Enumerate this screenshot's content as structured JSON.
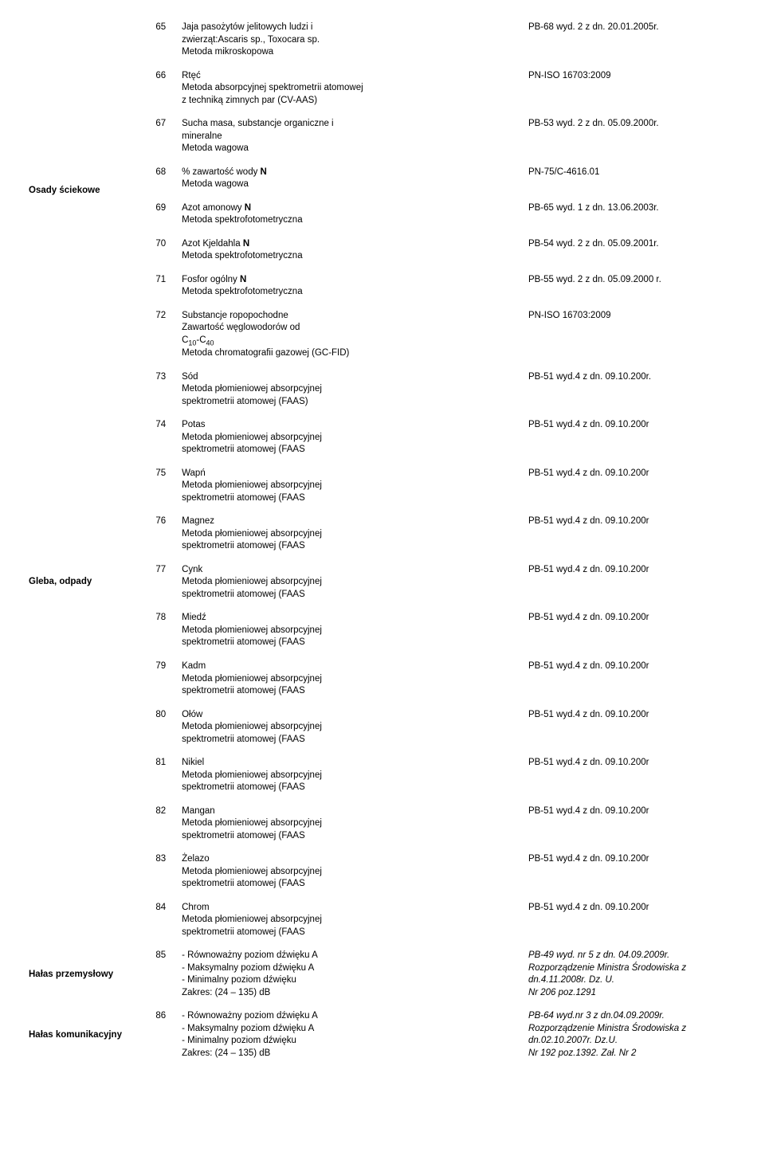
{
  "categories": [
    {
      "label": "Osady ściekowe",
      "startRow": 65,
      "span": 8
    },
    {
      "label": "Gleba, odpady",
      "startRow": 77,
      "span": 1
    },
    {
      "label": "Hałas przemysłowy",
      "startRow": 85,
      "span": 1
    },
    {
      "label": "Hałas komunikacyjny",
      "startRow": 86,
      "span": 1
    }
  ],
  "rows": [
    {
      "n": 65,
      "desc": [
        {
          "t": "Jaja pasożytów jelitowych ludzi i"
        },
        {
          "t": "zwierząt:Ascaris sp., Toxocara sp."
        },
        {
          "t": "Metoda mikroskopowa"
        }
      ],
      "ref": [
        {
          "t": "PB-68 wyd. 2 z dn. 20.01.2005r."
        }
      ]
    },
    {
      "n": 66,
      "desc": [
        {
          "t": "Rtęć"
        },
        {
          "t": "Metoda absorpcyjnej spektrometrii atomowej"
        },
        {
          "t": "z techniką zimnych par (CV-AAS)"
        }
      ],
      "ref": [
        {
          "t": "PN-ISO 16703:2009"
        }
      ]
    },
    {
      "n": 67,
      "desc": [
        {
          "t": "Sucha masa, substancje organiczne i"
        },
        {
          "t": "mineralne"
        },
        {
          "t": "Metoda wagowa"
        }
      ],
      "ref": [
        {
          "t": "PB-53 wyd. 2 z dn. 05.09.2000r."
        }
      ]
    },
    {
      "n": 68,
      "desc": [
        {
          "seq": [
            {
              "t": "% zawartość wody "
            },
            {
              "t": "N",
              "b": 1
            }
          ]
        },
        {
          "t": "Metoda wagowa"
        }
      ],
      "ref": [
        {
          "t": "PN-75/C-4616.01"
        }
      ]
    },
    {
      "n": 69,
      "desc": [
        {
          "seq": [
            {
              "t": "Azot amonowy "
            },
            {
              "t": "N",
              "b": 1
            }
          ]
        },
        {
          "t": "Metoda spektrofotometryczna"
        }
      ],
      "ref": [
        {
          "t": "PB-65 wyd. 1 z dn. 13.06.2003r."
        }
      ]
    },
    {
      "n": 70,
      "desc": [
        {
          "seq": [
            {
              "t": "Azot Kjeldahla "
            },
            {
              "t": "N",
              "b": 1
            }
          ]
        },
        {
          "t": "Metoda spektrofotometryczna"
        }
      ],
      "ref": [
        {
          "t": "PB-54 wyd. 2 z dn. 05.09.2001r."
        }
      ]
    },
    {
      "n": 71,
      "desc": [
        {
          "seq": [
            {
              "t": "Fosfor ogólny "
            },
            {
              "t": "N",
              "b": 1
            }
          ]
        },
        {
          "t": "Metoda spektrofotometryczna"
        }
      ],
      "ref": [
        {
          "t": "PB-55 wyd. 2 z dn. 05.09.2000 r."
        }
      ]
    },
    {
      "n": 72,
      "desc": [
        {
          "t": "Substancje ropopochodne"
        },
        {
          "t": "Zawartość węglowodorów od"
        },
        {
          "seq": [
            {
              "t": "C"
            },
            {
              "t": "10",
              "sub": 1
            },
            {
              "t": "-C"
            },
            {
              "t": "40",
              "sub": 1
            }
          ]
        },
        {
          "t": "Metoda chromatografii gazowej (GC-FID)"
        }
      ],
      "ref": [
        {
          "t": "PN-ISO 16703:2009"
        }
      ]
    },
    {
      "n": 73,
      "desc": [
        {
          "t": "Sód"
        },
        {
          "t": "Metoda płomieniowej absorpcyjnej"
        },
        {
          "t": "spektrometrii atomowej (FAAS)"
        }
      ],
      "ref": [
        {
          "t": "PB-51 wyd.4 z dn. 09.10.200r."
        }
      ]
    },
    {
      "n": 74,
      "desc": [
        {
          "t": "Potas"
        },
        {
          "t": "Metoda płomieniowej absorpcyjnej"
        },
        {
          "t": "spektrometrii atomowej (FAAS"
        }
      ],
      "ref": [
        {
          "t": "PB-51 wyd.4 z dn. 09.10.200r"
        }
      ]
    },
    {
      "n": 75,
      "desc": [
        {
          "t": "Wapń"
        },
        {
          "t": "Metoda płomieniowej absorpcyjnej"
        },
        {
          "t": "spektrometrii atomowej (FAAS"
        }
      ],
      "ref": [
        {
          "t": "PB-51 wyd.4 z dn. 09.10.200r"
        }
      ]
    },
    {
      "n": 76,
      "desc": [
        {
          "t": "Magnez"
        },
        {
          "t": "Metoda płomieniowej absorpcyjnej"
        },
        {
          "t": "spektrometrii atomowej (FAAS"
        }
      ],
      "ref": [
        {
          "t": "PB-51 wyd.4 z dn. 09.10.200r"
        }
      ]
    },
    {
      "n": 77,
      "desc": [
        {
          "t": "Cynk"
        },
        {
          "t": "Metoda płomieniowej absorpcyjnej"
        },
        {
          "t": "spektrometrii atomowej (FAAS"
        }
      ],
      "ref": [
        {
          "t": "PB-51 wyd.4 z dn. 09.10.200r"
        }
      ]
    },
    {
      "n": 78,
      "desc": [
        {
          "t": "Miedź"
        },
        {
          "t": "Metoda płomieniowej absorpcyjnej"
        },
        {
          "t": "spektrometrii atomowej (FAAS"
        }
      ],
      "ref": [
        {
          "t": "PB-51 wyd.4 z dn. 09.10.200r"
        }
      ]
    },
    {
      "n": 79,
      "desc": [
        {
          "t": "Kadm"
        },
        {
          "t": "Metoda płomieniowej absorpcyjnej"
        },
        {
          "t": "spektrometrii atomowej (FAAS"
        }
      ],
      "ref": [
        {
          "t": "PB-51 wyd.4 z dn. 09.10.200r"
        }
      ]
    },
    {
      "n": 80,
      "desc": [
        {
          "t": "Ołów"
        },
        {
          "t": "Metoda płomieniowej absorpcyjnej"
        },
        {
          "t": "spektrometrii atomowej (FAAS"
        }
      ],
      "ref": [
        {
          "t": "PB-51 wyd.4 z dn. 09.10.200r"
        }
      ]
    },
    {
      "n": 81,
      "desc": [
        {
          "t": "Nikiel"
        },
        {
          "t": "Metoda płomieniowej absorpcyjnej"
        },
        {
          "t": "spektrometrii atomowej (FAAS"
        }
      ],
      "ref": [
        {
          "t": "PB-51 wyd.4 z dn. 09.10.200r"
        }
      ]
    },
    {
      "n": 82,
      "desc": [
        {
          "t": "Mangan"
        },
        {
          "t": "Metoda płomieniowej absorpcyjnej"
        },
        {
          "t": "spektrometrii atomowej (FAAS"
        }
      ],
      "ref": [
        {
          "t": "PB-51 wyd.4 z dn. 09.10.200r"
        }
      ]
    },
    {
      "n": 83,
      "desc": [
        {
          "t": "Żelazo"
        },
        {
          "t": "Metoda płomieniowej absorpcyjnej"
        },
        {
          "t": "spektrometrii atomowej (FAAS"
        }
      ],
      "ref": [
        {
          "t": "PB-51 wyd.4 z dn. 09.10.200r"
        }
      ]
    },
    {
      "n": 84,
      "desc": [
        {
          "t": "Chrom"
        },
        {
          "t": "Metoda płomieniowej absorpcyjnej"
        },
        {
          "t": "spektrometrii atomowej (FAAS"
        }
      ],
      "ref": [
        {
          "t": "PB-51 wyd.4 z dn. 09.10.200r"
        }
      ]
    },
    {
      "n": 85,
      "desc": [
        {
          "t": "- Równoważny poziom dźwięku A"
        },
        {
          "t": "- Maksymalny poziom dźwięku A"
        },
        {
          "t": "- Minimalny poziom dźwięku"
        },
        {
          "t": "Zakres: (24 – 135) dB"
        }
      ],
      "ref": [
        {
          "t": "PB-49 wyd. nr 5 z dn. 04.09.2009r.",
          "i": 1
        },
        {
          "t": "Rozporządzenie Ministra Środowiska z",
          "i": 1
        },
        {
          "t": "dn.4.11.2008r. Dz. U.",
          "i": 1
        },
        {
          "t": "Nr 206 poz.1291",
          "i": 1
        }
      ]
    },
    {
      "n": 86,
      "desc": [
        {
          "t": "- Równoważny poziom dźwięku A"
        },
        {
          "t": "- Maksymalny poziom dźwięku A"
        },
        {
          "t": "- Minimalny poziom dźwięku"
        },
        {
          "t": "Zakres: (24 – 135) dB"
        }
      ],
      "ref": [
        {
          "t": "PB-64 wyd.nr 3 z dn.04.09.2009r.",
          "i": 1
        },
        {
          "t": "Rozporządzenie Ministra Środowiska z",
          "i": 1
        },
        {
          "t": "dn.02.10.2007r. Dz.U.",
          "i": 1
        },
        {
          "t": "Nr 192 poz.1392. Zał. Nr 2",
          "i": 1
        }
      ]
    }
  ]
}
